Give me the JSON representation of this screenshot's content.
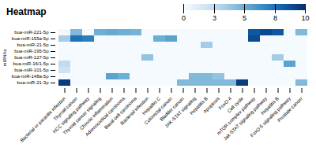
{
  "chart_data": {
    "type": "heatmap",
    "title": "Heatmap",
    "ylabel": "miRNAs",
    "color": "Blues",
    "colorbar_range": [
      0,
      10
    ],
    "colorbar_ticks": [
      0,
      2.5,
      5,
      7.5,
      10
    ],
    "rows": [
      "bua-miR-221-5p",
      "bua-miR-155a-5p",
      "bua-miR-21-5p",
      "bua-miR-195-5p",
      "bua-miR-127-5p",
      "bua-miR-16/1-5p",
      "bua-miR-101-5p",
      "bua-miR-148a-5p",
      "bua-miR-21-3p"
    ],
    "categories": [
      "Bacterial or parasitic infection",
      "Thyroid cancer",
      "HCC signaling pathway",
      "Thyroid cancer signaling",
      "Chronic inflammation",
      "Adrenocortical carcinoma",
      "Basal cell carcinoma",
      "Bacterial infection",
      "Hepatitis C",
      "Colorectal cancer",
      "Bladder cancer",
      "JAK-STAT signaling",
      "Hepatitis B",
      "Apoptosis",
      "FoxO-4",
      "Cell cycle",
      "mTOR complex pathway",
      "Jak-STAT signaling pathway",
      "Hepatitis B",
      "FoxO-5 signaling pathway",
      "Prostate cancer"
    ],
    "values": [
      [
        0.2,
        4.5,
        0.1,
        5.0,
        5.2,
        5.0,
        4.8,
        0.1,
        0.1,
        0.1,
        0.1,
        0.1,
        0.1,
        0.1,
        0.1,
        0.1,
        8.5,
        9.0,
        8.5,
        0.1,
        4.5
      ],
      [
        3.5,
        7.5,
        7.0,
        0.1,
        0.1,
        0.1,
        0.1,
        0.1,
        5.0,
        5.5,
        0.1,
        0.1,
        0.1,
        0.1,
        0.1,
        0.1,
        9.0,
        0.1,
        0.1,
        0.1,
        0.1
      ],
      [
        0.1,
        0.1,
        0.1,
        0.1,
        0.1,
        0.1,
        0.1,
        0.1,
        0.1,
        0.1,
        0.1,
        0.1,
        3.5,
        0.1,
        0.1,
        0.1,
        0.1,
        0.1,
        0.1,
        0.1,
        0.1
      ],
      [
        0.1,
        0.1,
        0.1,
        0.1,
        0.1,
        0.1,
        0.1,
        0.1,
        0.1,
        0.1,
        0.1,
        0.1,
        0.1,
        0.1,
        0.1,
        0.1,
        0.1,
        0.1,
        0.1,
        0.1,
        0.1
      ],
      [
        0.1,
        0.1,
        0.1,
        0.1,
        0.1,
        0.1,
        0.1,
        4.0,
        0.1,
        0.1,
        0.1,
        0.1,
        0.1,
        0.1,
        0.1,
        0.1,
        0.1,
        0.1,
        3.5,
        0.1,
        0.1
      ],
      [
        2.5,
        0.1,
        0.1,
        0.1,
        0.1,
        0.1,
        0.1,
        0.1,
        0.1,
        0.1,
        0.1,
        0.1,
        0.1,
        0.1,
        0.1,
        0.1,
        0.1,
        0.1,
        0.1,
        5.5,
        0.1
      ],
      [
        2.0,
        0.1,
        0.1,
        0.1,
        0.1,
        0.1,
        0.1,
        0.1,
        0.1,
        0.1,
        0.1,
        0.1,
        0.1,
        0.1,
        0.1,
        0.1,
        0.1,
        0.1,
        0.1,
        0.1,
        0.1
      ],
      [
        0.1,
        0.1,
        0.1,
        0.1,
        5.5,
        5.0,
        0.1,
        0.1,
        0.1,
        0.1,
        0.1,
        4.5,
        4.5,
        4.0,
        0.1,
        0.1,
        0.1,
        0.1,
        0.1,
        0.1,
        0.1
      ],
      [
        9.5,
        0.1,
        0.1,
        0.1,
        0.1,
        0.1,
        0.1,
        0.1,
        0.1,
        0.1,
        4.5,
        4.5,
        4.5,
        4.5,
        4.5,
        9.5,
        0.1,
        0.1,
        0.1,
        0.1,
        4.5
      ]
    ]
  }
}
